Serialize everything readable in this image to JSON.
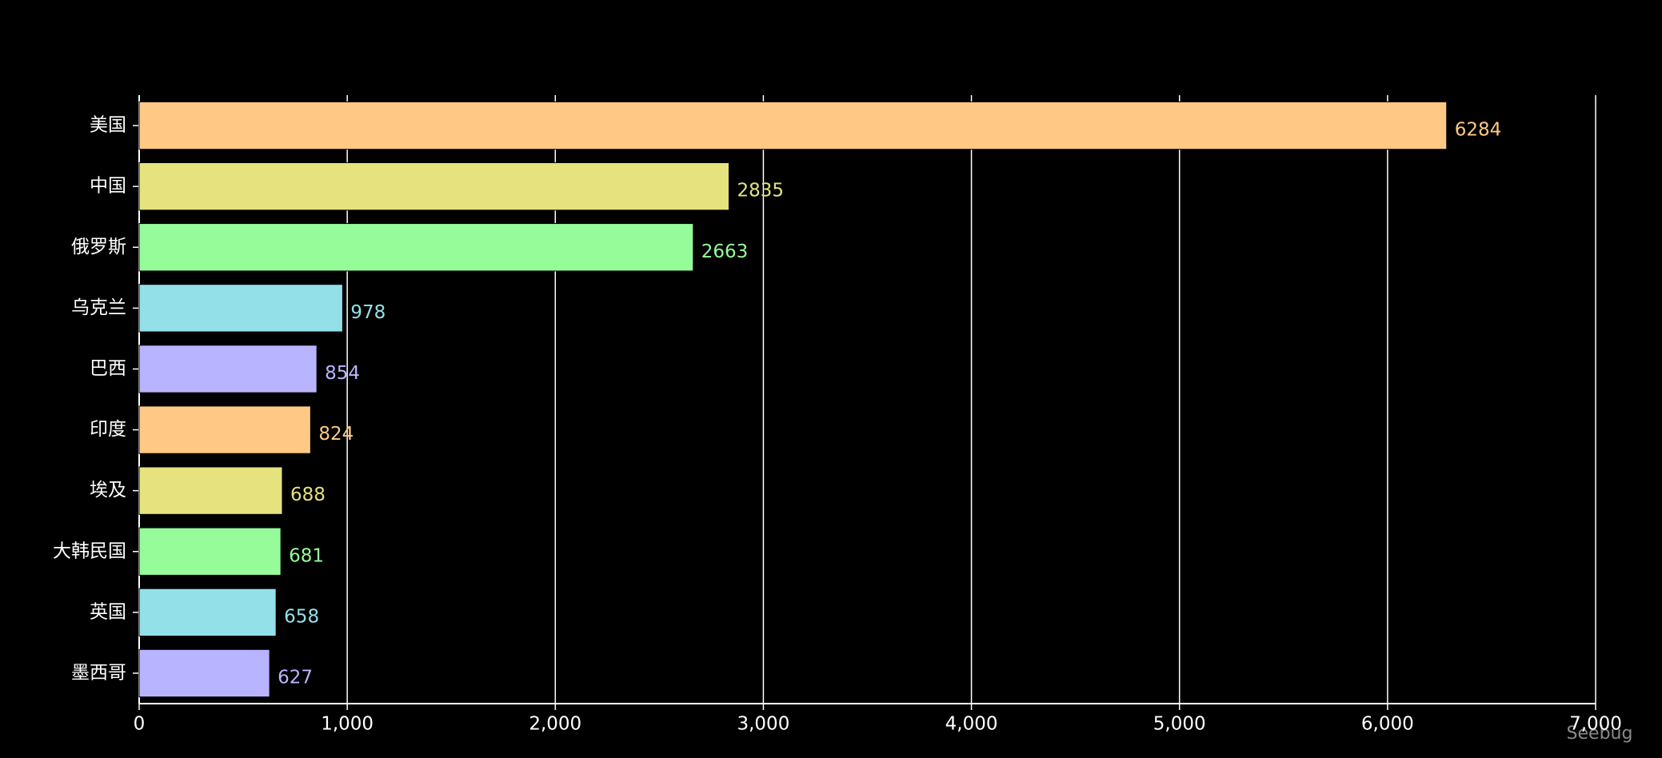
{
  "chart_data": {
    "type": "bar",
    "orientation": "horizontal",
    "categories": [
      "美国",
      "中国",
      "俄罗斯",
      "乌克兰",
      "巴西",
      "印度",
      "埃及",
      "大韩民国",
      "英国",
      "墨西哥"
    ],
    "values": [
      6284,
      2835,
      2663,
      978,
      854,
      824,
      688,
      681,
      658,
      627
    ],
    "colors": [
      "#ffc985",
      "#e6e27e",
      "#96fc9a",
      "#94e0e8",
      "#b9b4ff",
      "#ffc985",
      "#e6e27e",
      "#96fc9a",
      "#94e0e8",
      "#b9b4ff"
    ],
    "xlim": [
      0,
      7000
    ],
    "xticks": [
      0,
      {
        "value": 1000,
        "label": "1,000"
      },
      {
        "value": 2000,
        "label": "2,000"
      },
      {
        "value": 3000,
        "label": "3,000"
      },
      {
        "value": 4000,
        "label": "4,000"
      },
      {
        "value": 5000,
        "label": "5,000"
      },
      {
        "value": 6000,
        "label": "6,000"
      },
      {
        "value": 7000,
        "label": "7,000"
      }
    ],
    "grid": true,
    "watermark": "Seebug"
  }
}
